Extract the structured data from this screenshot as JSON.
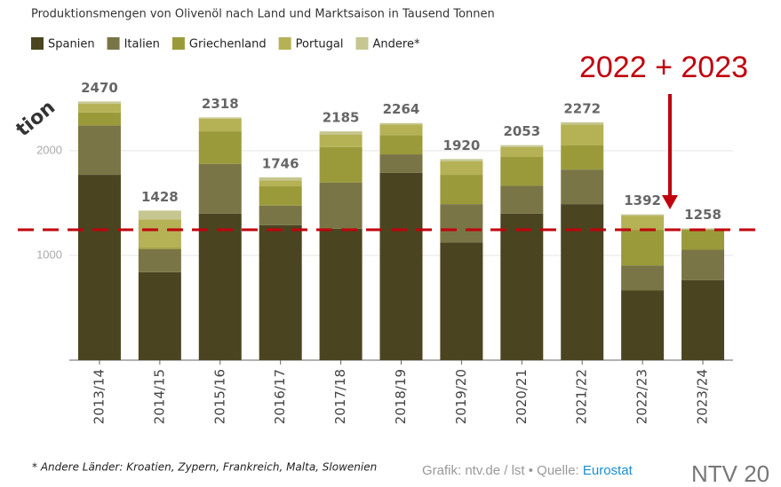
{
  "chart_data": {
    "type": "stacked_bar",
    "title": "Produktionsmengen von Olivenöl nach Land und Marktsaison in Tausend Tonnen",
    "categories": [
      "2013/14",
      "2014/15",
      "2015/16",
      "2016/17",
      "2017/18",
      "2018/19",
      "2019/20",
      "2020/21",
      "2021/22",
      "2022/23",
      "2023/24"
    ],
    "series": [
      {
        "name": "Spanien",
        "color": "#4a4520",
        "values": [
          1770,
          840,
          1400,
          1290,
          1255,
          1790,
          1125,
          1400,
          1490,
          665,
          765
        ]
      },
      {
        "name": "Italien",
        "color": "#7a7546",
        "values": [
          470,
          220,
          475,
          185,
          440,
          175,
          365,
          265,
          330,
          240,
          290
        ]
      },
      {
        "name": "Griechenland",
        "color": "#9a9a3a",
        "values": [
          125,
          15,
          310,
          185,
          340,
          185,
          280,
          275,
          230,
          340,
          190
        ]
      },
      {
        "name": "Portugal",
        "color": "#b4b255",
        "values": [
          85,
          270,
          120,
          55,
          120,
          100,
          128,
          95,
          200,
          135,
          5
        ]
      },
      {
        "name": "Andere*",
        "color": "#c6c690",
        "values": [
          20,
          83,
          13,
          31,
          30,
          14,
          22,
          18,
          22,
          12,
          8
        ]
      }
    ],
    "totals": [
      2470,
      1428,
      2318,
      1746,
      2185,
      2264,
      1920,
      2053,
      2272,
      1392,
      1258
    ],
    "ylim": [
      0,
      2660
    ],
    "yticks": [
      1000,
      2000
    ],
    "grid": true,
    "annotation": "2022 + 2023",
    "reference_line": 1245,
    "side_label": "tion",
    "footnote": "* Andere Länder: Kroatien, Zypern, Frankreich, Malta, Slowenien",
    "credit": "Grafik: ntv.de / lst • Quelle: ",
    "source": "Eurostat",
    "watermark": "NTV 20"
  }
}
